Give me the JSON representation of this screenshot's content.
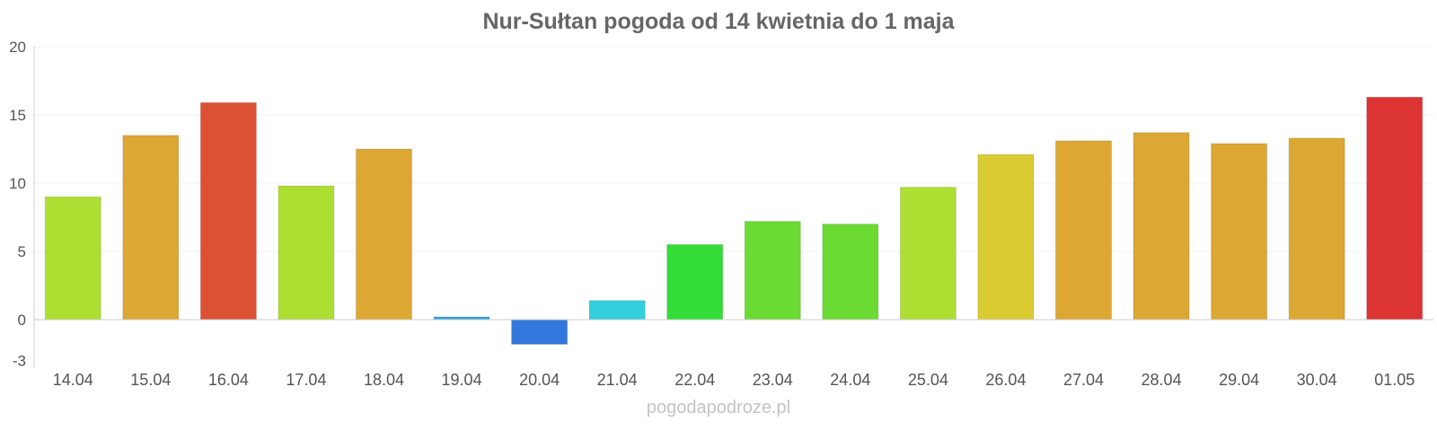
{
  "chart_data": {
    "type": "bar",
    "title": "Nur-Sułtan pogoda od 14 kwietnia do 1 maja",
    "categories": [
      "14.04",
      "15.04",
      "16.04",
      "17.04",
      "18.04",
      "19.04",
      "20.04",
      "21.04",
      "22.04",
      "23.04",
      "24.04",
      "25.04",
      "26.04",
      "27.04",
      "28.04",
      "29.04",
      "30.04",
      "01.05"
    ],
    "values": [
      9.0,
      13.5,
      15.9,
      9.8,
      12.5,
      0.2,
      -1.8,
      1.4,
      5.5,
      7.2,
      7.0,
      9.7,
      12.1,
      13.1,
      13.7,
      12.9,
      13.3,
      16.3
    ],
    "colors": [
      "#addf33",
      "#dca733",
      "#dc5033",
      "#addf33",
      "#dca733",
      "#33a3dc",
      "#3377dc",
      "#33cfdc",
      "#33dc37",
      "#6bdb33",
      "#6bdb33",
      "#addf33",
      "#dbcb33",
      "#dca733",
      "#dca733",
      "#dca733",
      "#dca733",
      "#dc3333"
    ],
    "yticks": [
      -3,
      0,
      5,
      10,
      15,
      20
    ],
    "ylim": [
      -3,
      20
    ],
    "grid": true,
    "xlabel": "",
    "ylabel": ""
  },
  "watermark": "pogodapodroze.pl"
}
